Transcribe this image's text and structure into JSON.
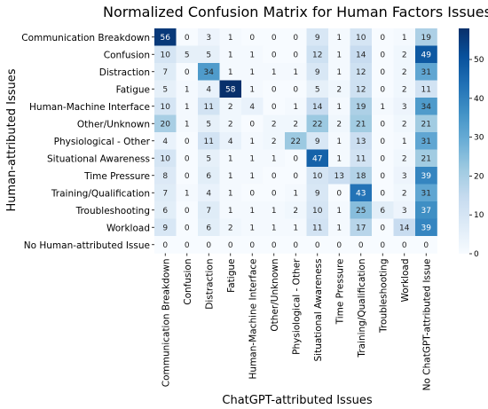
{
  "chart_data": {
    "type": "heatmap",
    "title": "Normalized Confusion Matrix for Human Factors Issues",
    "xlabel": "ChatGPT-attributed Issues",
    "ylabel": "Human-attributed Issues",
    "row_labels": [
      "Communication Breakdown",
      "Confusion",
      "Distraction",
      "Fatigue",
      "Human-Machine Interface",
      "Other/Unknown",
      "Physiological - Other",
      "Situational Awareness",
      "Time Pressure",
      "Training/Qualification",
      "Troubleshooting",
      "Workload",
      "No Human-attributed Issue"
    ],
    "col_labels": [
      "Communication Breakdown",
      "Confusion",
      "Distraction",
      "Fatigue",
      "Human-Machine Interface",
      "Other/Unknown",
      "Physiological - Other",
      "Situational Awareness",
      "Time Pressure",
      "Training/Qualification",
      "Troubleshooting",
      "Workload",
      "No ChatGPT-attributed Issue"
    ],
    "values": [
      [
        56,
        0,
        3,
        1,
        0,
        0,
        0,
        9,
        1,
        10,
        0,
        1,
        19
      ],
      [
        10,
        5,
        5,
        1,
        1,
        0,
        0,
        12,
        1,
        14,
        0,
        2,
        49
      ],
      [
        7,
        0,
        34,
        1,
        1,
        1,
        1,
        9,
        1,
        12,
        0,
        2,
        31
      ],
      [
        5,
        1,
        4,
        58,
        1,
        0,
        0,
        5,
        2,
        12,
        0,
        2,
        11
      ],
      [
        10,
        1,
        11,
        2,
        4,
        0,
        1,
        14,
        1,
        19,
        1,
        3,
        34
      ],
      [
        20,
        1,
        5,
        2,
        0,
        2,
        2,
        22,
        2,
        21,
        0,
        2,
        21
      ],
      [
        4,
        0,
        11,
        4,
        1,
        2,
        22,
        9,
        1,
        13,
        0,
        1,
        31
      ],
      [
        10,
        0,
        5,
        1,
        1,
        1,
        0,
        47,
        1,
        11,
        0,
        2,
        21
      ],
      [
        8,
        0,
        6,
        1,
        1,
        0,
        0,
        10,
        13,
        18,
        0,
        3,
        39
      ],
      [
        7,
        1,
        4,
        1,
        0,
        0,
        1,
        9,
        0,
        43,
        0,
        2,
        31
      ],
      [
        6,
        0,
        7,
        1,
        1,
        1,
        2,
        10,
        1,
        25,
        6,
        3,
        37
      ],
      [
        9,
        0,
        6,
        2,
        1,
        1,
        1,
        11,
        1,
        17,
        0,
        14,
        39
      ],
      [
        0,
        0,
        0,
        0,
        0,
        0,
        0,
        0,
        0,
        0,
        0,
        0,
        0
      ]
    ],
    "colorbar": {
      "min": 0,
      "max": 58,
      "ticks": [
        0,
        10,
        20,
        30,
        40,
        50
      ]
    },
    "colormap": "Blues"
  }
}
